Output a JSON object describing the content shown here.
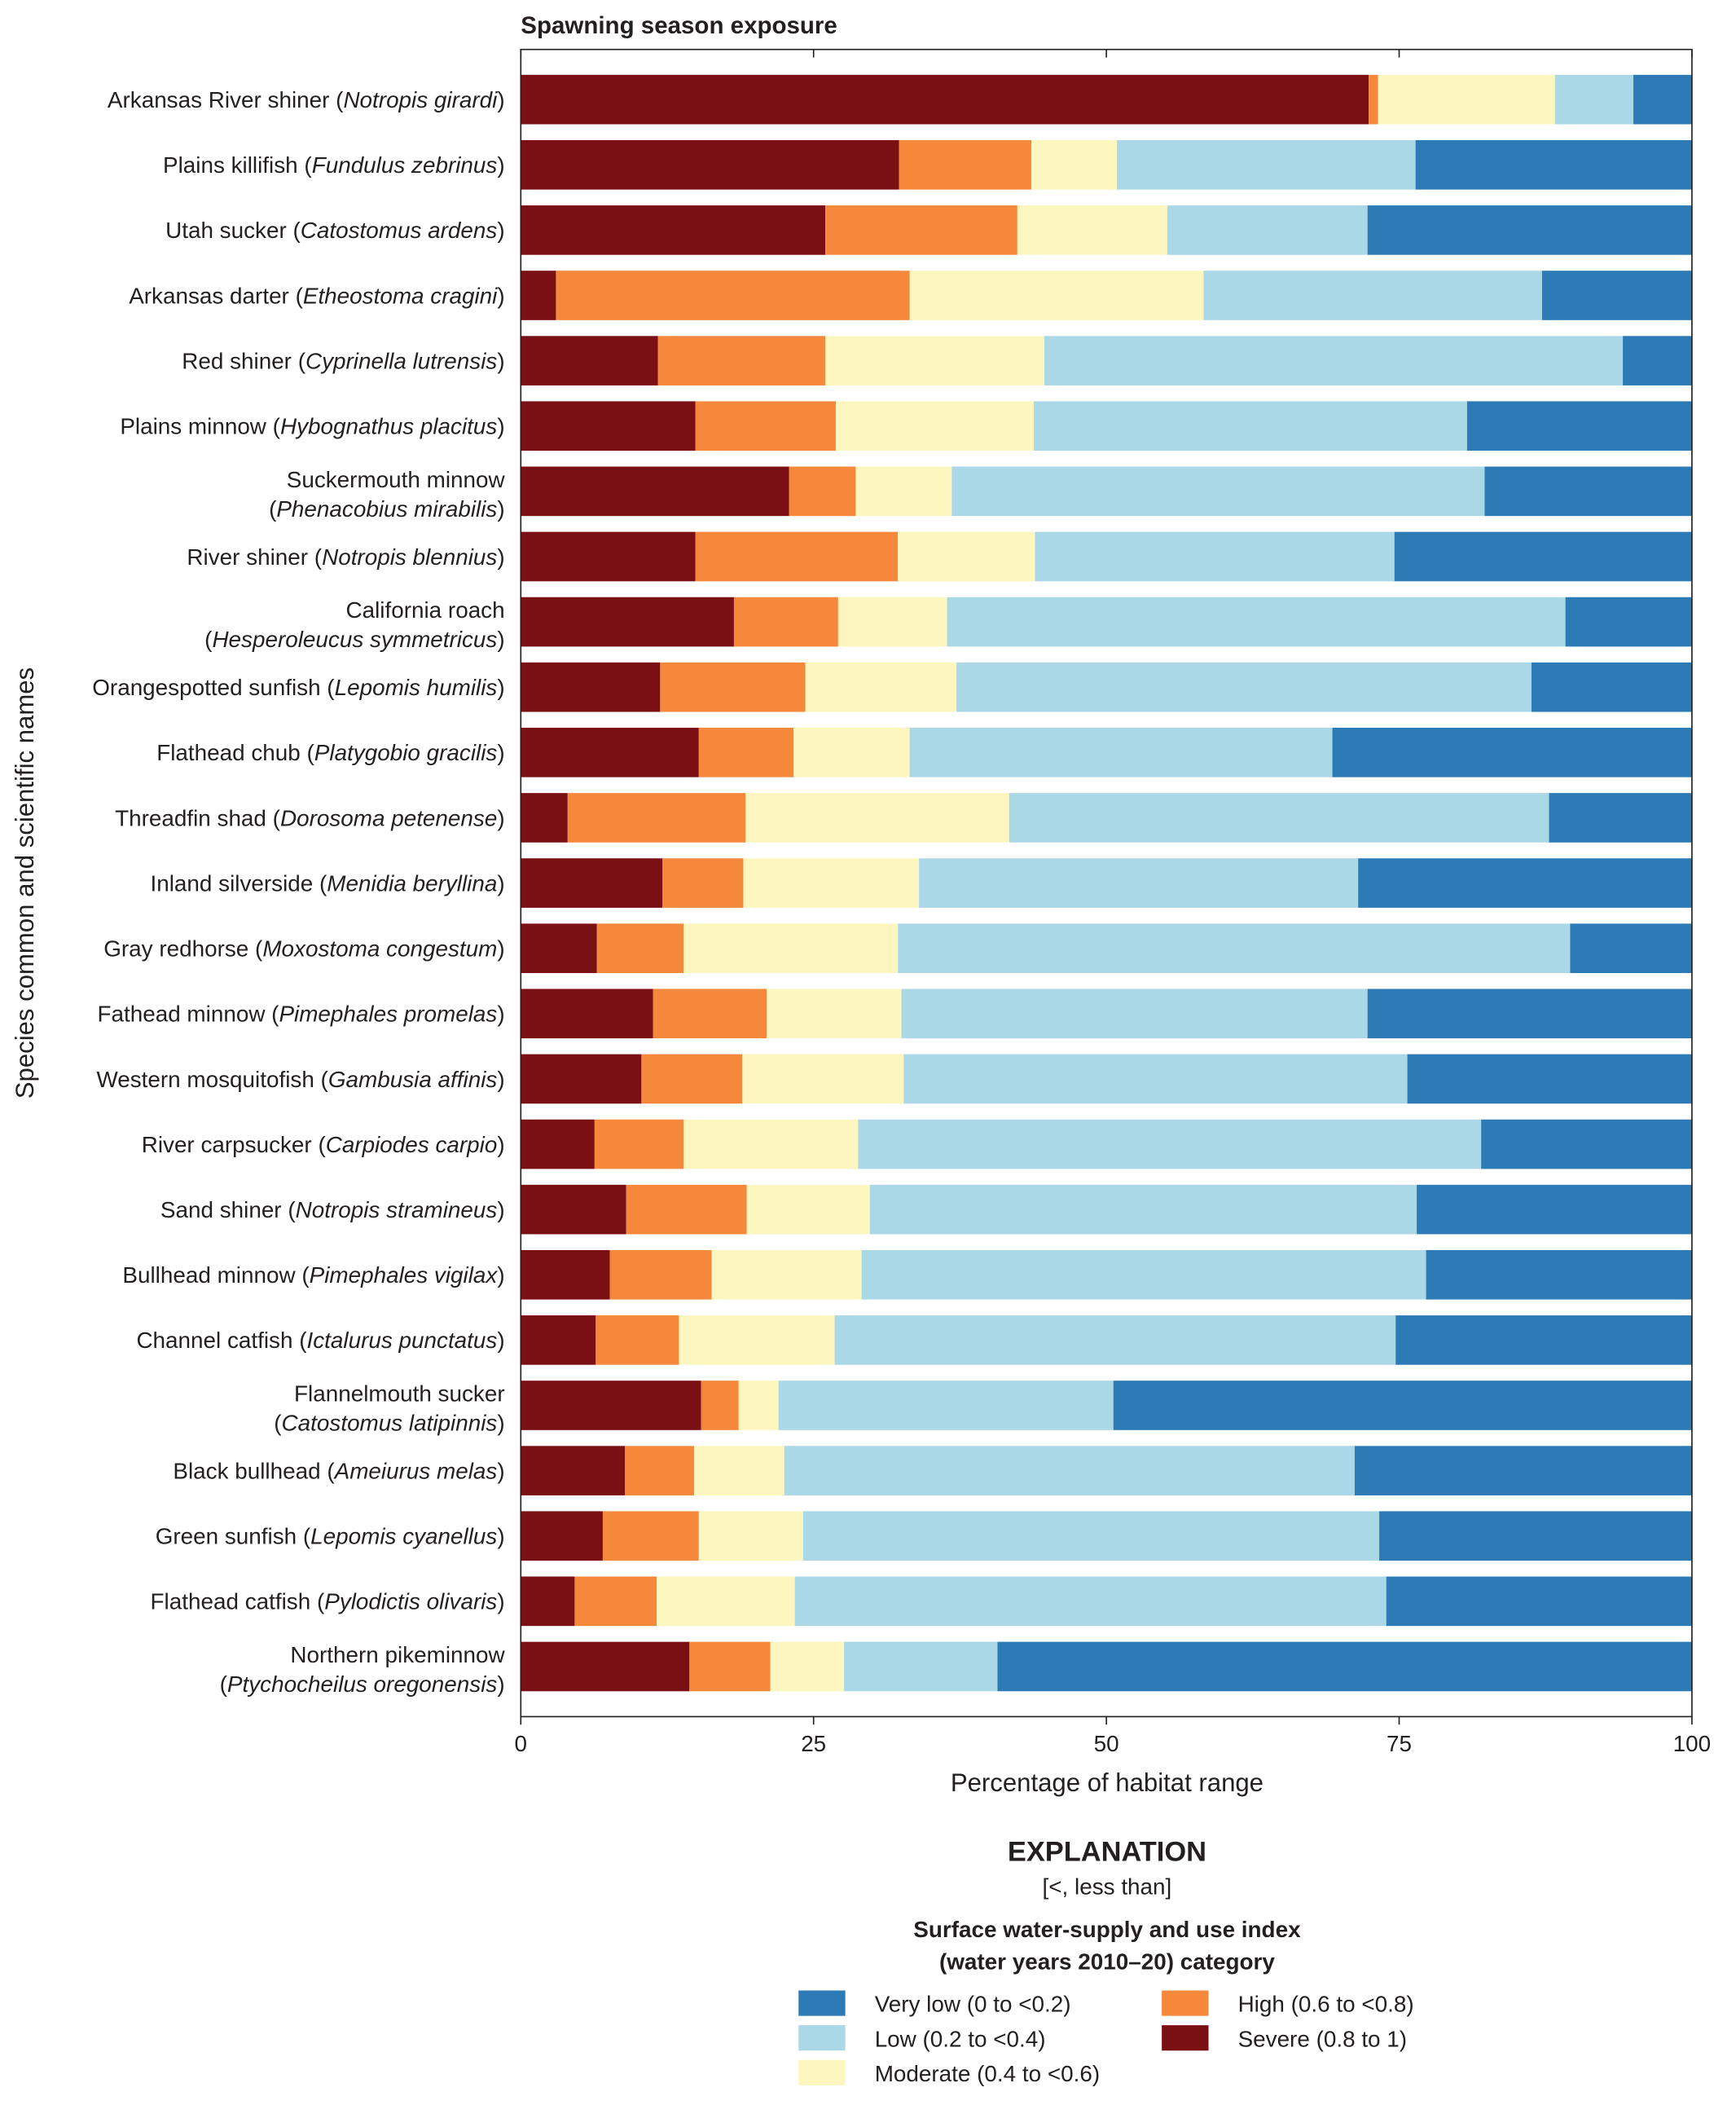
{
  "chart_data": {
    "type": "bar",
    "orientation": "horizontal",
    "stacked": true,
    "title": "Spawning season exposure",
    "xlabel": "Percentage of habitat range",
    "ylabel": "Species common and scientific names",
    "xlim": [
      0,
      100
    ],
    "xticks": [
      0,
      25,
      50,
      75,
      100
    ],
    "grid": false,
    "categories": [
      {
        "common": "Arkansas River shiner",
        "scientific": "Notropis girardi",
        "wrap": false
      },
      {
        "common": "Plains killifish",
        "scientific": "Fundulus zebrinus",
        "wrap": false
      },
      {
        "common": "Utah sucker",
        "scientific": "Catostomus ardens",
        "wrap": false
      },
      {
        "common": "Arkansas darter",
        "scientific": "Etheostoma cragini",
        "wrap": false
      },
      {
        "common": "Red shiner",
        "scientific": "Cyprinella lutrensis",
        "wrap": false
      },
      {
        "common": "Plains minnow",
        "scientific": "Hybognathus placitus",
        "wrap": false
      },
      {
        "common": "Suckermouth minnow",
        "scientific": "Phenacobius mirabilis",
        "wrap": true
      },
      {
        "common": "River shiner",
        "scientific": "Notropis blennius",
        "wrap": false
      },
      {
        "common": "California roach",
        "scientific": "Hesperoleucus symmetricus",
        "wrap": true
      },
      {
        "common": "Orangespotted sunfish",
        "scientific": "Lepomis humilis",
        "wrap": false
      },
      {
        "common": "Flathead chub",
        "scientific": "Platygobio gracilis",
        "wrap": false
      },
      {
        "common": "Threadfin shad",
        "scientific": "Dorosoma petenense",
        "wrap": false
      },
      {
        "common": "Inland silverside",
        "scientific": "Menidia beryllina",
        "wrap": false
      },
      {
        "common": "Gray redhorse",
        "scientific": "Moxostoma congestum",
        "wrap": false
      },
      {
        "common": "Fathead minnow",
        "scientific": "Pimephales promelas",
        "wrap": false
      },
      {
        "common": "Western mosquitofish",
        "scientific": "Gambusia affinis",
        "wrap": false
      },
      {
        "common": "River carpsucker",
        "scientific": "Carpiodes carpio",
        "wrap": false
      },
      {
        "common": "Sand shiner",
        "scientific": "Notropis stramineus",
        "wrap": false
      },
      {
        "common": "Bullhead minnow",
        "scientific": "Pimephales vigilax",
        "wrap": false
      },
      {
        "common": "Channel catfish",
        "scientific": "Ictalurus punctatus",
        "wrap": false
      },
      {
        "common": "Flannelmouth sucker",
        "scientific": "Catostomus latipinnis",
        "wrap": true
      },
      {
        "common": "Black bullhead",
        "scientific": "Ameiurus melas",
        "wrap": false
      },
      {
        "common": "Green sunfish",
        "scientific": "Lepomis cyanellus",
        "wrap": false
      },
      {
        "common": "Flathead catfish",
        "scientific": "Pylodictis olivaris",
        "wrap": false
      },
      {
        "common": "Northern pikeminnow",
        "scientific": "Ptychocheilus oregonensis",
        "wrap": true
      }
    ],
    "series": [
      {
        "name": "Severe (0.8 to 1)",
        "color": "#7a1014",
        "values": [
          72.4,
          32.3,
          26.0,
          3.0,
          11.7,
          14.9,
          22.9,
          14.9,
          18.2,
          11.9,
          15.2,
          4.0,
          12.1,
          6.5,
          11.3,
          10.3,
          6.3,
          9.0,
          7.6,
          6.4,
          15.4,
          8.9,
          7.0,
          4.6,
          14.4
        ]
      },
      {
        "name": "High (0.6 to <0.8)",
        "color": "#f5883b",
        "values": [
          0.8,
          11.3,
          16.4,
          30.2,
          14.3,
          12.0,
          5.7,
          17.3,
          8.9,
          12.4,
          8.1,
          15.2,
          6.9,
          7.4,
          9.7,
          8.6,
          7.6,
          10.3,
          8.7,
          7.1,
          3.2,
          5.9,
          8.2,
          7.0,
          6.9
        ]
      },
      {
        "name": "Moderate (0.4 to <0.6)",
        "color": "#fdf7bf",
        "values": [
          15.1,
          7.3,
          12.8,
          25.1,
          18.7,
          16.9,
          8.2,
          11.7,
          9.3,
          12.9,
          9.9,
          22.5,
          15.0,
          18.3,
          11.5,
          13.8,
          14.9,
          10.5,
          12.8,
          13.3,
          3.4,
          7.7,
          8.9,
          11.8,
          6.3
        ]
      },
      {
        "name": "Low (0.2 to <0.4)",
        "color": "#aad8e7",
        "values": [
          6.7,
          25.5,
          17.1,
          28.9,
          49.4,
          37.0,
          45.5,
          30.7,
          52.8,
          49.1,
          36.1,
          46.1,
          37.5,
          57.4,
          39.8,
          43.0,
          53.2,
          46.7,
          48.2,
          47.9,
          28.6,
          48.7,
          49.2,
          50.5,
          13.1
        ]
      },
      {
        "name": "Very low (0 to <0.2)",
        "color": "#2d7bb6",
        "values": [
          5.0,
          23.6,
          27.7,
          12.8,
          5.9,
          19.2,
          17.7,
          25.4,
          10.8,
          13.7,
          30.7,
          12.2,
          28.5,
          10.4,
          27.7,
          24.3,
          18.0,
          23.5,
          22.7,
          25.3,
          49.4,
          28.8,
          26.7,
          26.1,
          59.3
        ]
      }
    ],
    "legend": {
      "title": "EXPLANATION",
      "note": "[<, less than]",
      "subtitle_line1": "Surface water-supply and use index",
      "subtitle_line2": "(water years 2010–20) category",
      "placement": "bottom",
      "entries": [
        {
          "label": "Very low (0 to <0.2)",
          "color": "#2d7bb6"
        },
        {
          "label": "Low (0.2 to <0.4)",
          "color": "#aad8e7"
        },
        {
          "label": "Moderate (0.4 to <0.6)",
          "color": "#fdf7bf"
        },
        {
          "label": "High (0.6 to <0.8)",
          "color": "#f5883b"
        },
        {
          "label": "Severe (0.8 to 1)",
          "color": "#7a1014"
        }
      ]
    }
  }
}
